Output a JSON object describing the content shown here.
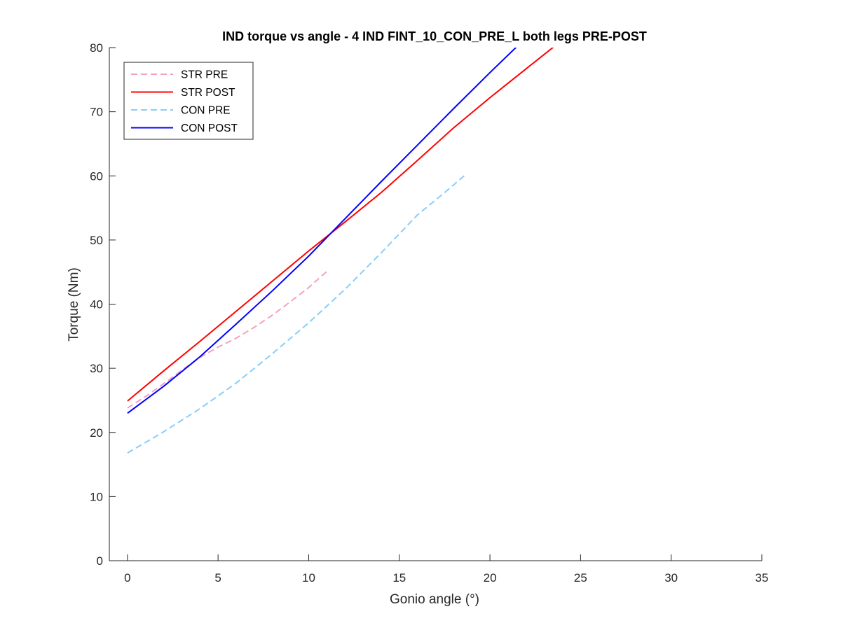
{
  "chart_data": {
    "type": "line",
    "title": "IND torque vs angle - 4 IND FINT_10_CON_PRE_L both legs PRE-POST",
    "xlabel": "Gonio angle (°)",
    "ylabel": "Torque (Nm)",
    "xlim": [
      -1,
      35
    ],
    "ylim": [
      0,
      80
    ],
    "xticks": [
      0,
      5,
      10,
      15,
      20,
      25,
      30,
      35
    ],
    "yticks": [
      0,
      10,
      20,
      30,
      40,
      50,
      60,
      70,
      80
    ],
    "grid": false,
    "legend_position": "top-left",
    "series": [
      {
        "name": "STR PRE",
        "color": "#f4a0c4",
        "dash": "dashed",
        "x": [
          0,
          1,
          2,
          3,
          4,
          5,
          6,
          7,
          8,
          9,
          10,
          11
        ],
        "y": [
          23.8,
          25.6,
          27.6,
          29.7,
          31.7,
          33.3,
          34.7,
          36.4,
          38.3,
          40.4,
          42.6,
          45.1
        ]
      },
      {
        "name": "STR POST",
        "color": "#ff0000",
        "dash": "solid",
        "x": [
          0,
          2,
          4,
          6,
          8,
          10,
          12,
          14,
          16,
          18,
          20,
          22,
          23.6
        ],
        "y": [
          24.9,
          29.6,
          34.2,
          38.9,
          43.6,
          48.3,
          52.8,
          57.4,
          62.4,
          67.5,
          72.2,
          76.7,
          80.3
        ]
      },
      {
        "name": "CON PRE",
        "color": "#87cefa",
        "dash": "dashed",
        "x": [
          0,
          2,
          4,
          6,
          8,
          10,
          12,
          14,
          16,
          17.5,
          18.7
        ],
        "y": [
          16.8,
          20.1,
          23.7,
          27.7,
          32.3,
          37.1,
          42.3,
          48.0,
          53.9,
          57.4,
          60.3
        ]
      },
      {
        "name": "CON POST",
        "color": "#0000ff",
        "dash": "solid",
        "x": [
          0,
          2,
          4,
          6,
          8,
          10,
          12,
          14,
          16,
          18,
          20,
          21.5
        ],
        "y": [
          23.0,
          27.2,
          31.8,
          36.9,
          42.1,
          47.5,
          53.3,
          59.1,
          64.8,
          70.5,
          76.1,
          80.2
        ]
      }
    ]
  }
}
